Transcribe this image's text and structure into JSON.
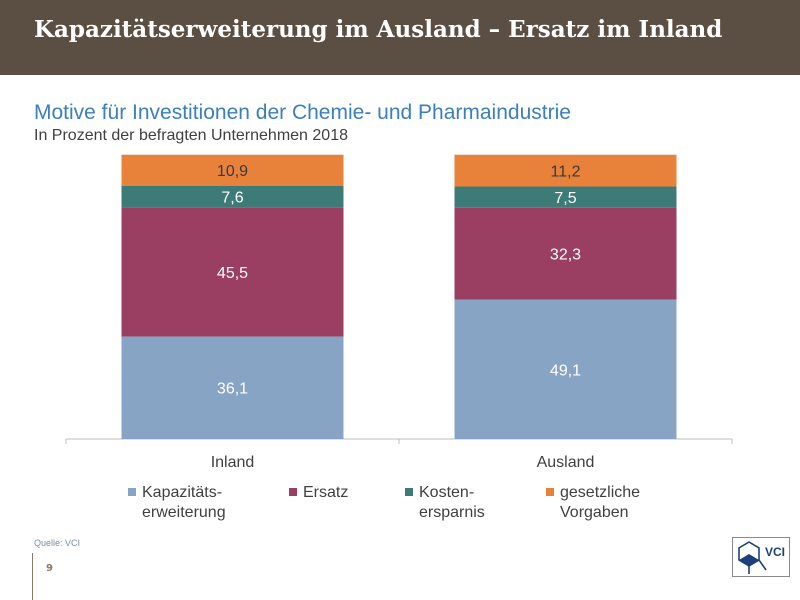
{
  "header": {
    "title": "Kapazitätserweiterung im Ausland – Ersatz im Inland"
  },
  "footer": {
    "source": "Quelle: VCI",
    "page_number": "9",
    "logo_text": "VCI"
  },
  "colors": {
    "header_bg": "#5b4f43",
    "title": "#3b7fbf",
    "series": [
      "#88a4c4",
      "#9b3f62",
      "#3d7b78",
      "#e8813a"
    ]
  },
  "chart_data": {
    "type": "bar",
    "stacked": true,
    "title": "Motive für Investitionen der Chemie- und Pharmaindustrie",
    "subtitle": "In Prozent der befragten Unternehmen 2018",
    "categories": [
      "Inland",
      "Ausland"
    ],
    "series": [
      {
        "name": "Kapazitäts-\nerweiterung",
        "values": [
          36.1,
          49.1
        ],
        "labels": [
          "36,1",
          "49,1"
        ]
      },
      {
        "name": "Ersatz",
        "values": [
          45.5,
          32.3
        ],
        "labels": [
          "45,5",
          "32,3"
        ]
      },
      {
        "name": "Kosten-\nersparnis",
        "values": [
          7.6,
          7.5
        ],
        "labels": [
          "7,6",
          "7,5"
        ]
      },
      {
        "name": "gesetzliche\nVorgaben",
        "values": [
          10.9,
          11.2
        ],
        "labels": [
          "10,9",
          "11,2"
        ]
      }
    ],
    "ylim": [
      0,
      100
    ],
    "grid": false,
    "legend_position": "bottom"
  }
}
